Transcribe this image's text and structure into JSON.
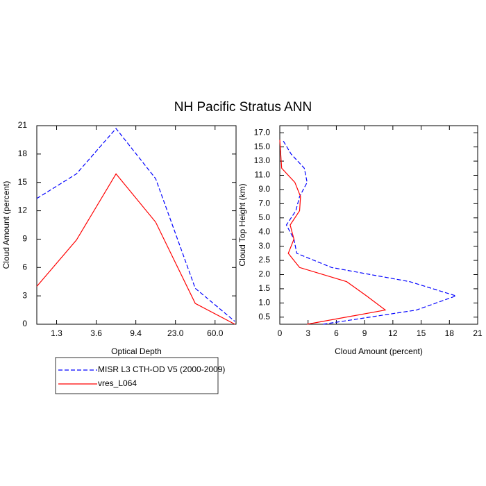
{
  "chart_data": [
    {
      "type": "line",
      "title": "NH Pacific Stratus ANN",
      "xlabel": "Optical Depth",
      "ylabel": "Cloud Amount (percent)",
      "x": [
        0,
        1,
        2,
        3,
        4,
        5
      ],
      "xlim": [
        0,
        5.03
      ],
      "xticks": [
        {
          "value": 0.5,
          "label": "1.3"
        },
        {
          "value": 1.5,
          "label": "3.6"
        },
        {
          "value": 2.5,
          "label": "9.4"
        },
        {
          "value": 3.5,
          "label": "23.0"
        },
        {
          "value": 4.5,
          "label": "60.0"
        }
      ],
      "ylim": [
        0,
        21
      ],
      "yticks": [
        0,
        3,
        6,
        9,
        12,
        15,
        18,
        21
      ],
      "series": [
        {
          "name": "MISR L3 CTH-OD V5 (2000-2009)",
          "color": "#0000ff",
          "dashed": true,
          "values": [
            13.3,
            15.9,
            20.7,
            15.4,
            3.8,
            0.3
          ]
        },
        {
          "name": "vres_L064",
          "color": "#ff0000",
          "dashed": false,
          "values": [
            4.0,
            8.9,
            15.9,
            10.8,
            2.2,
            0.0
          ]
        }
      ]
    },
    {
      "type": "line",
      "orientation": "horizontal",
      "xlabel": "Cloud Amount (percent)",
      "ylabel": "Cloud Top Height (km)",
      "xlim": [
        0,
        21
      ],
      "xticks": [
        0,
        3,
        6,
        9,
        12,
        15,
        18,
        21
      ],
      "ylim": [
        0,
        14
      ],
      "yticks": [
        {
          "value": 0.5,
          "label": "0.5"
        },
        {
          "value": 1.5,
          "label": "1.0"
        },
        {
          "value": 2.5,
          "label": "1.5"
        },
        {
          "value": 3.5,
          "label": "2.0"
        },
        {
          "value": 4.5,
          "label": "2.5"
        },
        {
          "value": 5.5,
          "label": "3.0"
        },
        {
          "value": 6.5,
          "label": "4.0"
        },
        {
          "value": 7.5,
          "label": "5.0"
        },
        {
          "value": 8.5,
          "label": "7.0"
        },
        {
          "value": 9.5,
          "label": "9.0"
        },
        {
          "value": 10.5,
          "label": "11.0"
        },
        {
          "value": 11.5,
          "label": "13.0"
        },
        {
          "value": 12.5,
          "label": "15.0"
        },
        {
          "value": 13.5,
          "label": "17.0"
        }
      ],
      "series": [
        {
          "color": "#0000ff",
          "dashed": true,
          "values": [
            4.6,
            14.5,
            18.7,
            13.8,
            5.5,
            1.8,
            1.5,
            0.7,
            1.7,
            2.1,
            2.9,
            2.6,
            1.2,
            0.3
          ]
        },
        {
          "color": "#ff0000",
          "dashed": false,
          "values": [
            2.9,
            11.2,
            9.2,
            7.1,
            2.1,
            0.9,
            1.5,
            1.1,
            2.1,
            2.2,
            1.6,
            0.2,
            0.1,
            0.0
          ]
        }
      ]
    }
  ]
}
